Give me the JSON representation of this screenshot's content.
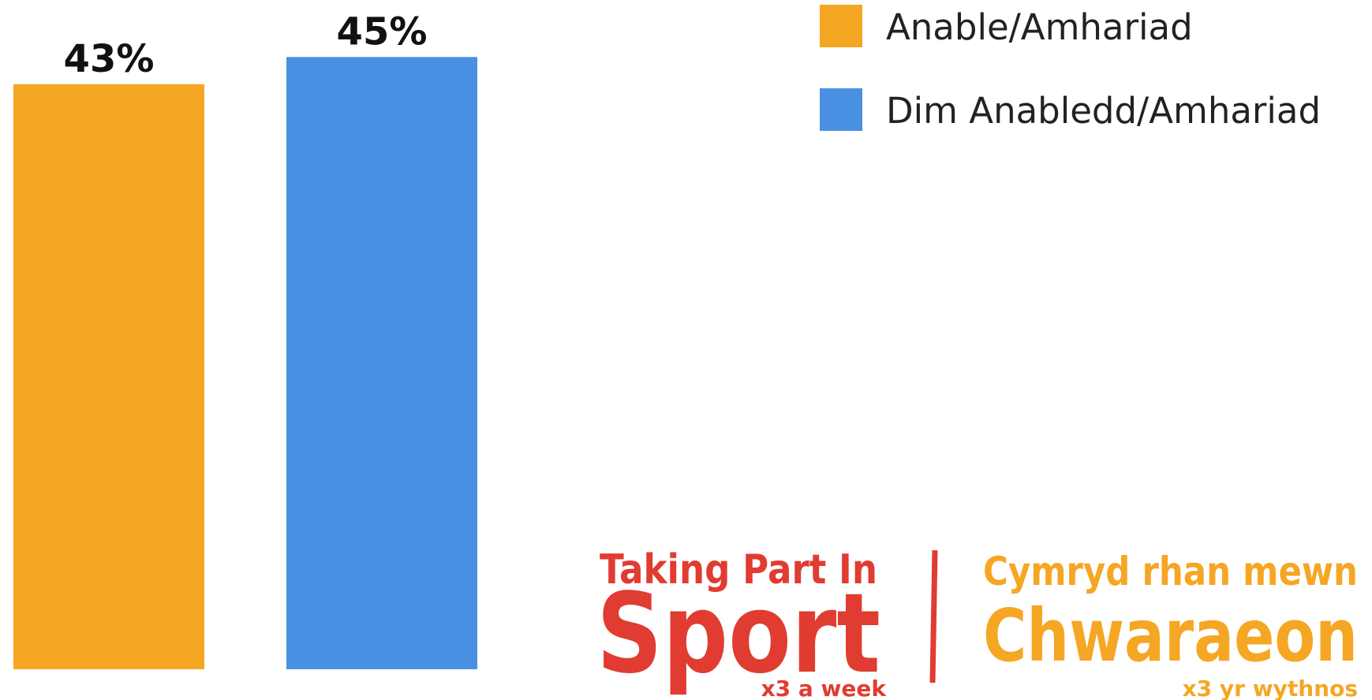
{
  "chart_data": {
    "type": "bar",
    "series": [
      {
        "name": "Anable/Amhariad",
        "color": "#f5a623",
        "values": [
          43
        ],
        "value_labels": [
          "43%"
        ]
      },
      {
        "name": "Dim Anabledd/Amhariad",
        "color": "#4a90e2",
        "values": [
          45
        ],
        "value_labels": [
          "45%"
        ]
      }
    ]
  },
  "logo": {
    "left": {
      "line1": "Taking Part In",
      "line2": "Sport",
      "line3": "x3 a week"
    },
    "right": {
      "line1": "Cymryd rhan mewn",
      "line2": "Chwaraeon",
      "line3": "x3 yr wythnos"
    }
  }
}
